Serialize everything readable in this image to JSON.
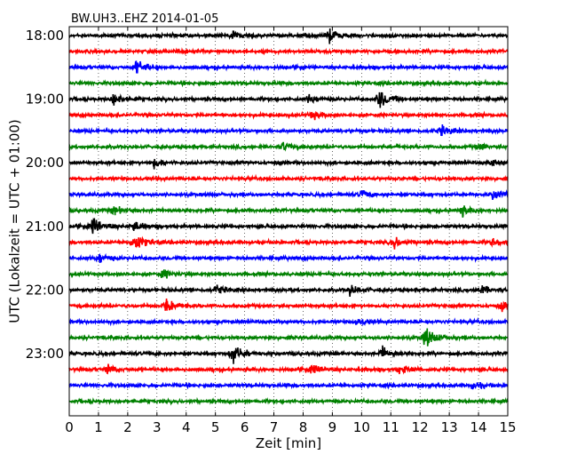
{
  "chart_data": {
    "type": "line",
    "title": "BW.UH3..EHZ 2014-01-05",
    "xlabel": "Zeit  [min]",
    "ylabel": "UTC (Lokalzeit = UTC + 01:00)",
    "xlim": [
      0,
      15
    ],
    "x_ticks": [
      "0",
      "1",
      "2",
      "3",
      "4",
      "5",
      "6",
      "7",
      "8",
      "9",
      "10",
      "11",
      "12",
      "13",
      "14",
      "15"
    ],
    "y_ticks": [
      "18:00",
      "19:00",
      "20:00",
      "21:00",
      "22:00",
      "23:00"
    ],
    "grid": "vertical-dotted",
    "trace_colors": [
      "#000000",
      "#ff0000",
      "#0000ff",
      "#008000"
    ],
    "series": [
      {
        "start": "18:00",
        "color": "#000000",
        "events": [
          [
            5.5,
            0.6
          ],
          [
            8.9,
            1.0
          ]
        ]
      },
      {
        "start": "18:15",
        "color": "#ff0000",
        "events": []
      },
      {
        "start": "18:30",
        "color": "#0000ff",
        "events": [
          [
            2.3,
            1.0
          ]
        ]
      },
      {
        "start": "18:45",
        "color": "#008000",
        "events": []
      },
      {
        "start": "19:00",
        "color": "#000000",
        "events": [
          [
            1.5,
            0.8
          ],
          [
            8.2,
            0.6
          ],
          [
            10.6,
            1.6
          ]
        ]
      },
      {
        "start": "19:15",
        "color": "#ff0000",
        "events": [
          [
            8.3,
            0.6
          ]
        ]
      },
      {
        "start": "19:30",
        "color": "#0000ff",
        "events": [
          [
            12.7,
            0.7
          ]
        ]
      },
      {
        "start": "19:45",
        "color": "#008000",
        "events": [
          [
            7.3,
            0.6
          ],
          [
            14.0,
            0.5
          ]
        ]
      },
      {
        "start": "20:00",
        "color": "#000000",
        "events": [
          [
            2.9,
            0.6
          ],
          [
            14.4,
            0.5
          ]
        ]
      },
      {
        "start": "20:15",
        "color": "#ff0000",
        "events": []
      },
      {
        "start": "20:30",
        "color": "#0000ff",
        "events": [
          [
            10.0,
            0.6
          ],
          [
            14.5,
            0.9
          ]
        ]
      },
      {
        "start": "20:45",
        "color": "#008000",
        "events": [
          [
            1.5,
            0.6
          ],
          [
            13.4,
            0.8
          ]
        ]
      },
      {
        "start": "21:00",
        "color": "#000000",
        "events": [
          [
            0.8,
            1.3
          ],
          [
            2.2,
            0.8
          ]
        ]
      },
      {
        "start": "21:15",
        "color": "#ff0000",
        "events": [
          [
            2.2,
            1.6
          ],
          [
            11.1,
            0.9
          ],
          [
            14.5,
            0.6
          ]
        ]
      },
      {
        "start": "21:30",
        "color": "#0000ff",
        "events": [
          [
            1.0,
            0.7
          ]
        ]
      },
      {
        "start": "21:45",
        "color": "#008000",
        "events": [
          [
            3.2,
            0.6
          ]
        ]
      },
      {
        "start": "22:00",
        "color": "#000000",
        "events": [
          [
            5.0,
            0.7
          ],
          [
            9.6,
            0.6
          ],
          [
            14.0,
            0.8
          ]
        ]
      },
      {
        "start": "22:15",
        "color": "#ff0000",
        "events": [
          [
            3.3,
            1.2
          ],
          [
            14.8,
            0.6
          ]
        ]
      },
      {
        "start": "22:30",
        "color": "#0000ff",
        "events": [
          [
            9.8,
            0.6
          ]
        ]
      },
      {
        "start": "22:45",
        "color": "#008000",
        "events": [
          [
            12.2,
            1.7
          ]
        ]
      },
      {
        "start": "23:00",
        "color": "#000000",
        "events": [
          [
            5.6,
            1.5
          ],
          [
            10.7,
            0.9
          ]
        ]
      },
      {
        "start": "23:15",
        "color": "#ff0000",
        "events": [
          [
            1.3,
            0.7
          ],
          [
            8.3,
            0.7
          ],
          [
            11.3,
            0.6
          ]
        ]
      },
      {
        "start": "23:30",
        "color": "#0000ff",
        "events": [
          [
            13.8,
            0.6
          ]
        ]
      },
      {
        "start": "23:45",
        "color": "#008000",
        "events": []
      }
    ]
  }
}
